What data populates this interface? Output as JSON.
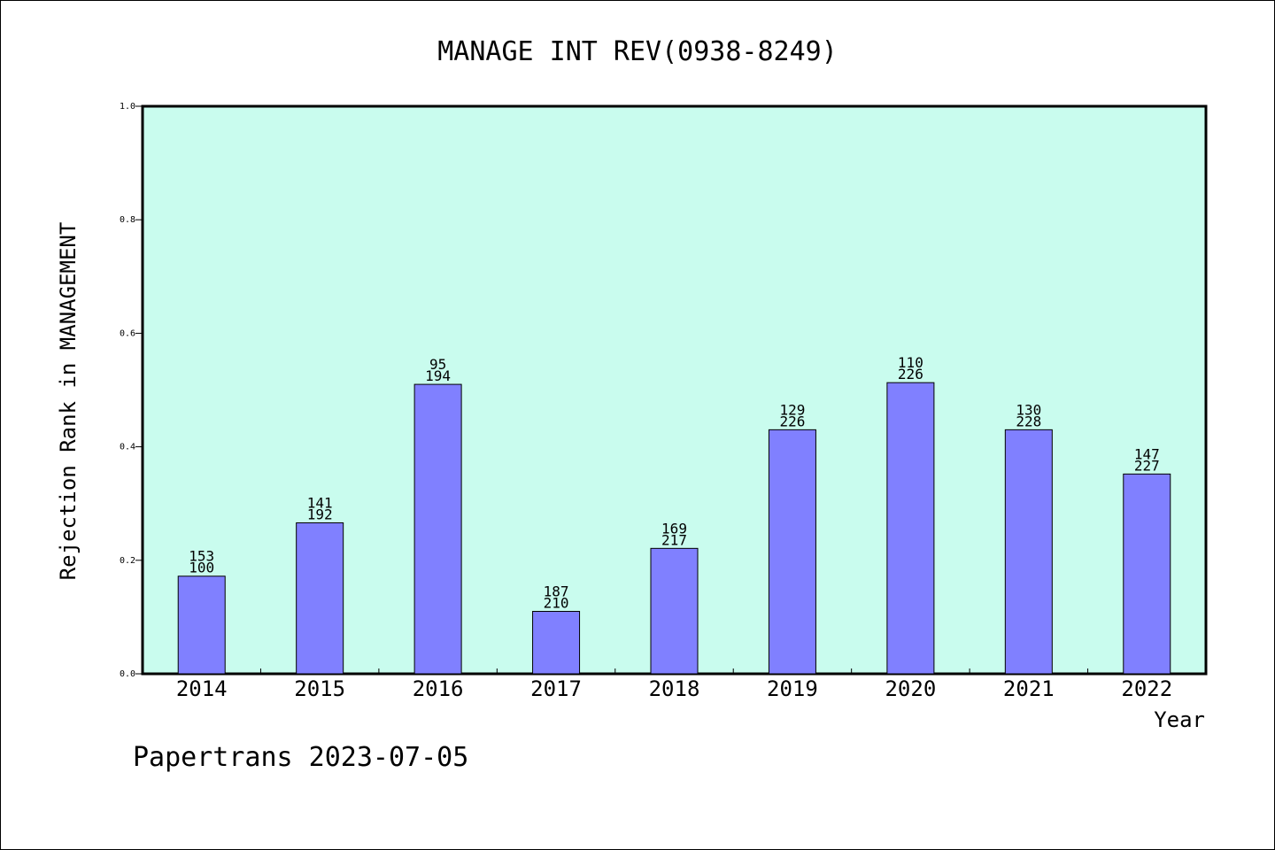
{
  "chart_data": {
    "type": "bar",
    "title": "MANAGE INT REV(0938-8249)",
    "xlabel": "Year",
    "ylabel": "Rejection Rank in MANAGEMENT",
    "ylim": [
      0,
      1.0
    ],
    "yticks": [
      "0.0",
      "0.2",
      "0.4",
      "0.6",
      "0.8",
      "1.0"
    ],
    "categories": [
      "2014",
      "2015",
      "2016",
      "2017",
      "2018",
      "2019",
      "2020",
      "2021",
      "2022"
    ],
    "values": [
      0.172,
      0.266,
      0.51,
      0.11,
      0.221,
      0.43,
      0.513,
      0.43,
      0.352
    ],
    "label_top": [
      "153",
      "141",
      "95",
      "187",
      "169",
      "129",
      "110",
      "130",
      "147"
    ],
    "label_bottom": [
      "100",
      "192",
      "194",
      "210",
      "217",
      "226",
      "226",
      "228",
      "227"
    ],
    "colors": {
      "background": "#c9fcee",
      "bar": "#8080ff",
      "bar_edge": "#000000"
    },
    "grid": false,
    "legend": "none"
  },
  "footer": "Papertrans 2023-07-05"
}
